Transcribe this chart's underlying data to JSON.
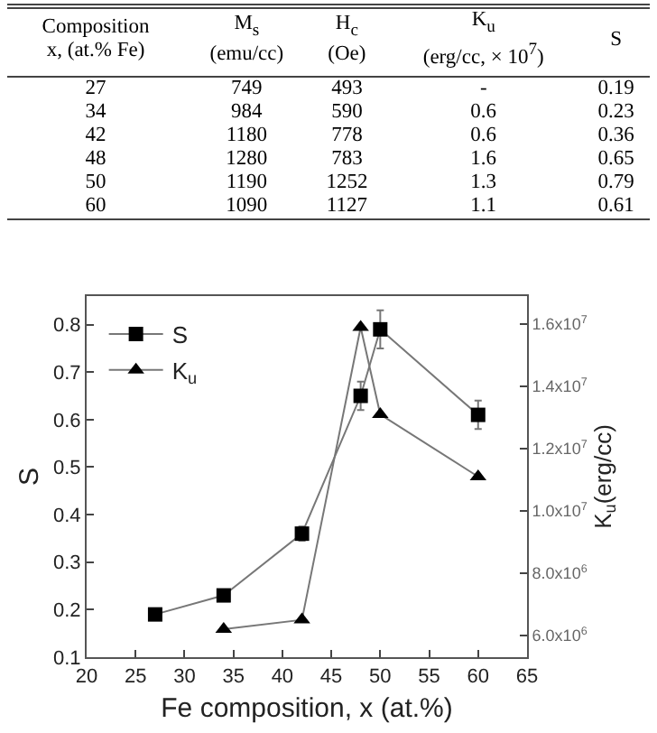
{
  "chart_data": [
    {
      "type": "other",
      "annotations": [
        "Composition\nx, (at.% Fe)",
        "M$_{s}$\n(emu/cc)",
        "H$_{c}$\n(Oe)",
        "K$_{u}$\n(erg/cc,  × 10$^{7}$)",
        "S",
        "27",
        "749",
        "493",
        "-",
        "0.19",
        "34",
        "984",
        "590",
        "0.6",
        "0.23",
        "42",
        "1180",
        "778",
        "0.6",
        "0.36",
        "48",
        "1280",
        "783",
        "1.6",
        "0.65",
        "50",
        "1190",
        "1252",
        "1.3",
        "0.79",
        "60",
        "1090",
        "1127",
        "1.1",
        "0.61"
      ]
    },
    {
      "type": "line",
      "xlabel": "Fe composition, x (at.%)",
      "ylabel": "S",
      "y2label": "K$_{u}$(erg/cc)",
      "xlim": [
        20,
        65
      ],
      "xticks": [
        20,
        25,
        30,
        35,
        40,
        45,
        50,
        55,
        60,
        65
      ],
      "ylim": [
        0.1,
        0.86
      ],
      "yticks": [
        0.1,
        0.2,
        0.3,
        0.4,
        0.5,
        0.6,
        0.7,
        0.8
      ],
      "y2lim": [
        5300000,
        16900000
      ],
      "y2ticks": [
        {
          "value": 6000000,
          "label": "6.0x10$^{6}$"
        },
        {
          "value": 8000000,
          "label": "8.0x10$^{6}$"
        },
        {
          "value": 10000000,
          "label": "1.0x10$^{7}$"
        },
        {
          "value": 12000000,
          "label": "1.2x10$^{7}$"
        },
        {
          "value": 14000000,
          "label": "1.4x10$^{7}$"
        },
        {
          "value": 16000000,
          "label": "1.6x10$^{7}$"
        }
      ],
      "grid": false,
      "legend": "top left",
      "line_style": "solid",
      "series": [
        {
          "name": "S",
          "color": "#000000",
          "marker": "square",
          "x": [
            27,
            34,
            42,
            48,
            50,
            60
          ],
          "values": [
            0.19,
            0.23,
            0.36,
            0.65,
            0.79,
            0.61
          ],
          "errors": [
            null,
            null,
            0.015,
            0.03,
            0.04,
            0.03
          ]
        },
        {
          "name": "K$_{u}$",
          "color": "#000000",
          "marker": "triangle",
          "axis": "y2",
          "x": [
            34,
            42,
            48,
            50,
            60
          ],
          "values": [
            6200000,
            6500000,
            15900000,
            13100000,
            11100000
          ]
        }
      ]
    }
  ]
}
